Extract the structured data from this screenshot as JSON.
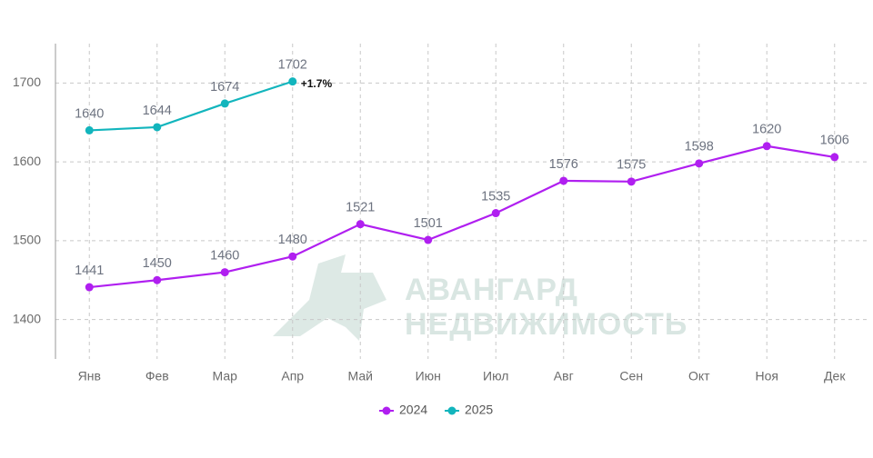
{
  "chart_data": {
    "type": "line",
    "categories": [
      "Янв",
      "Фев",
      "Мар",
      "Апр",
      "Май",
      "Июн",
      "Июл",
      "Авг",
      "Сен",
      "Окт",
      "Ноя",
      "Дек"
    ],
    "series": [
      {
        "name": "2024",
        "color": "#b01ff0",
        "values": [
          1441,
          1450,
          1460,
          1480,
          1521,
          1501,
          1535,
          1576,
          1575,
          1598,
          1620,
          1606
        ]
      },
      {
        "name": "2025",
        "color": "#12b5bd",
        "values": [
          1640,
          1644,
          1674,
          1702,
          null,
          null,
          null,
          null,
          null,
          null,
          null,
          null
        ]
      }
    ],
    "annotations": [
      "+1.7%"
    ],
    "watermark": [
      "АВАНГАРД",
      "НЕДВИЖИМОСТЬ"
    ],
    "ylim": [
      1350,
      1750
    ],
    "yticks": [
      1400,
      1500,
      1600,
      1700
    ],
    "grid": true,
    "legend": "bottom"
  }
}
